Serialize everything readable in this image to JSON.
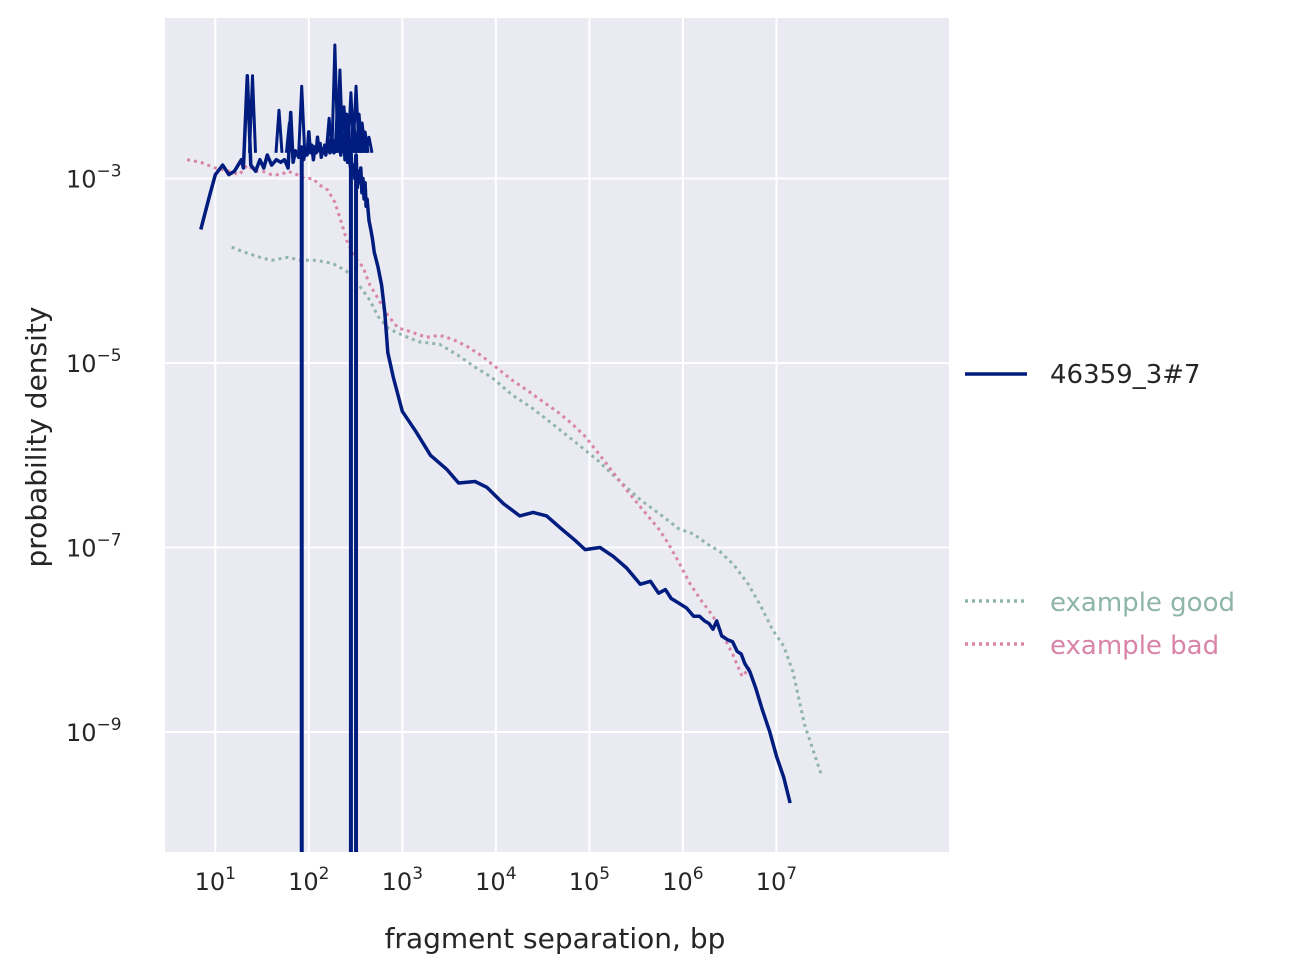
{
  "chart_data": {
    "type": "line",
    "xlabel": "fragment separation, bp",
    "ylabel": "probability density",
    "x_scale": "log",
    "y_scale": "log",
    "xlim": [
      2.9,
      700000000
    ],
    "ylim": [
      5e-11,
      0.055
    ],
    "grid": true,
    "x_ticks": [
      {
        "value": 10,
        "base": "10",
        "exp": "1"
      },
      {
        "value": 100,
        "base": "10",
        "exp": "2"
      },
      {
        "value": 1000,
        "base": "10",
        "exp": "3"
      },
      {
        "value": 10000,
        "base": "10",
        "exp": "4"
      },
      {
        "value": 100000,
        "base": "10",
        "exp": "5"
      },
      {
        "value": 1000000,
        "base": "10",
        "exp": "6"
      },
      {
        "value": 10000000,
        "base": "10",
        "exp": "7"
      }
    ],
    "y_ticks": [
      {
        "value": 0.001,
        "base": "10",
        "exp": "−3"
      },
      {
        "value": 1e-05,
        "base": "10",
        "exp": "−5"
      },
      {
        "value": 1e-07,
        "base": "10",
        "exp": "−7"
      },
      {
        "value": 1e-09,
        "base": "10",
        "exp": "−9"
      }
    ],
    "legend": {
      "placement": "outside-right",
      "groups": [
        {
          "entries": [
            {
              "label": "46359_3#7",
              "color": "#001c7f",
              "style": "solid"
            }
          ]
        },
        {
          "entries": [
            {
              "label": "example good",
              "color": "#8fb5aa",
              "style": "dotted"
            },
            {
              "label": "example bad",
              "color": "#d885a8",
              "style": "dotted"
            }
          ]
        }
      ]
    },
    "series": [
      {
        "name": "46359_3#7",
        "color": "#001c7f",
        "style": "solid",
        "points": [
          [
            7,
            0.00028
          ],
          [
            8.5,
            0.0006
          ],
          [
            10,
            0.0011
          ],
          [
            12,
            0.0014
          ],
          [
            14,
            0.0011
          ],
          [
            16,
            0.0012
          ],
          [
            19,
            0.0016
          ],
          [
            20,
            0.0013
          ],
          [
            22,
            0.013
          ],
          [
            24,
            0.0014
          ],
          [
            27,
            0.0012
          ],
          [
            30,
            0.0016
          ],
          [
            33,
            0.0013
          ],
          [
            36,
            0.0018
          ],
          [
            40,
            0.0014
          ],
          [
            45,
            0.0016
          ],
          [
            50,
            0.0015
          ],
          [
            55,
            0.0016
          ],
          [
            60,
            0.0013
          ],
          [
            64,
            0.0052
          ],
          [
            68,
            0.0015
          ],
          [
            72,
            0.002
          ],
          [
            78,
            0.0017
          ],
          [
            84,
            0.0022
          ],
          [
            88,
            0.0016
          ],
          [
            92,
            0.002
          ],
          [
            96,
            0.0018
          ],
          [
            100,
            0.0032
          ],
          [
            104,
            0.0019
          ],
          [
            108,
            0.0023
          ],
          [
            112,
            0.0016
          ],
          [
            116,
            0.0022
          ],
          [
            120,
            0.0019
          ],
          [
            124,
            0.0028
          ],
          [
            128,
            0.002
          ],
          [
            132,
            0.0024
          ],
          [
            136,
            0.0017
          ],
          [
            140,
            0.0021
          ],
          [
            144,
            0.0019
          ],
          [
            148,
            0.0023
          ],
          [
            152,
            0.0018
          ],
          [
            156,
            0.0022
          ],
          [
            160,
            0.002
          ],
          [
            164,
            0.0026
          ],
          [
            168,
            0.0019
          ],
          [
            172,
            0.0023
          ],
          [
            176,
            0.0021
          ],
          [
            180,
            0.0026
          ],
          [
            186,
            0.0019
          ],
          [
            192,
            0.0023
          ],
          [
            196,
            0.0021
          ],
          [
            200,
            0.0021
          ],
          [
            204,
            0.0024
          ],
          [
            208,
            0.002
          ],
          [
            212,
            0.0023
          ],
          [
            216,
            0.0021
          ],
          [
            220,
            0.0018
          ],
          [
            224,
            0.003
          ],
          [
            228,
            0.0026
          ],
          [
            232,
            0.003
          ],
          [
            236,
            0.0024
          ],
          [
            240,
            0.0022
          ],
          [
            244,
            0.0016
          ],
          [
            248,
            0.0021
          ],
          [
            252,
            0.0019
          ],
          [
            256,
            0.0018
          ],
          [
            260,
            0.0015
          ],
          [
            265,
            0.0019
          ],
          [
            270,
            0.0016
          ],
          [
            275,
            0.0015
          ],
          [
            280,
            0.0013
          ],
          [
            285,
            0.0017
          ],
          [
            290,
            0.0011
          ],
          [
            300,
            0.0014
          ],
          [
            310,
            0.001
          ],
          [
            320,
            0.0018
          ],
          [
            330,
            0.0008
          ],
          [
            340,
            0.0012
          ],
          [
            350,
            0.0009
          ],
          [
            360,
            0.0013
          ],
          [
            370,
            0.0007
          ],
          [
            380,
            0.001
          ],
          [
            390,
            0.0006
          ],
          [
            400,
            0.0009
          ],
          [
            410,
            0.0005
          ],
          [
            420,
            0.0006
          ],
          [
            440,
            0.00035
          ],
          [
            460,
            0.00028
          ],
          [
            480,
            0.00022
          ],
          [
            500,
            0.00016
          ],
          [
            550,
            0.00011
          ],
          [
            600,
            7e-05
          ],
          [
            650,
            3.5e-05
          ],
          [
            700,
            1.3e-05
          ],
          [
            800,
            7e-06
          ],
          [
            1000,
            3e-06
          ],
          [
            1400,
            1.8e-06
          ],
          [
            2000,
            1e-06
          ],
          [
            3000,
            7e-07
          ],
          [
            4000,
            5e-07
          ],
          [
            6000,
            5.2e-07
          ],
          [
            8000,
            4.5e-07
          ],
          [
            12000,
            3e-07
          ],
          [
            18000,
            2.2e-07
          ],
          [
            25000,
            2.4e-07
          ],
          [
            35000,
            2.2e-07
          ],
          [
            50000,
            1.6e-07
          ],
          [
            70000,
            1.2e-07
          ],
          [
            90000,
            9.5e-08
          ],
          [
            130000,
            1e-07
          ],
          [
            180000,
            8e-08
          ],
          [
            250000,
            6e-08
          ],
          [
            350000,
            4e-08
          ],
          [
            450000,
            4.3e-08
          ],
          [
            550000,
            3.2e-08
          ],
          [
            650000,
            3.5e-08
          ],
          [
            750000,
            2.8e-08
          ],
          [
            900000,
            2.5e-08
          ],
          [
            1100000,
            2.2e-08
          ],
          [
            1300000,
            1.8e-08
          ],
          [
            1500000,
            1.8e-08
          ],
          [
            1700000,
            1.6e-08
          ],
          [
            1900000,
            1.5e-08
          ],
          [
            2100000,
            1.3e-08
          ],
          [
            2300000,
            1.6e-08
          ],
          [
            2600000,
            1.1e-08
          ],
          [
            3000000,
            1e-08
          ],
          [
            3400000,
            9.5e-09
          ],
          [
            3800000,
            7.5e-09
          ],
          [
            4200000,
            7e-09
          ],
          [
            4600000,
            5.5e-09
          ],
          [
            5200000,
            4.5e-09
          ],
          [
            6000000,
            3e-09
          ],
          [
            7000000,
            1.8e-09
          ],
          [
            8500000,
            1e-09
          ],
          [
            10000000,
            5.5e-10
          ],
          [
            12000000,
            3.2e-10
          ],
          [
            14000000,
            1.7e-10
          ]
        ],
        "spikes": [
          {
            "x": 25,
            "y": 0.013
          },
          {
            "x": 48,
            "y": 0.0055
          },
          {
            "x": 62,
            "y": 0.004
          },
          {
            "x": 84,
            "y": 0.01
          },
          {
            "x": 165,
            "y": 0.0045
          },
          {
            "x": 190,
            "y": 0.028
          },
          {
            "x": 205,
            "y": 0.008
          },
          {
            "x": 215,
            "y": 0.015
          },
          {
            "x": 238,
            "y": 0.006
          },
          {
            "x": 255,
            "y": 0.005
          },
          {
            "x": 282,
            "y": 0.0085
          },
          {
            "x": 300,
            "y": 0.0045
          },
          {
            "x": 320,
            "y": 0.01
          },
          {
            "x": 345,
            "y": 0.005
          },
          {
            "x": 372,
            "y": 0.004
          },
          {
            "x": 400,
            "y": 0.0032
          },
          {
            "x": 440,
            "y": 0.0028
          }
        ],
        "drops": [
          {
            "x": 84,
            "from": 0.002,
            "to": 5e-11
          },
          {
            "x": 282,
            "from": 0.0019,
            "to": 5e-11
          },
          {
            "x": 320,
            "from": 0.0018,
            "to": 5e-11
          }
        ]
      },
      {
        "name": "example good",
        "color": "#8fb5aa",
        "style": "dotted",
        "points": [
          [
            15,
            0.00018
          ],
          [
            20,
            0.00016
          ],
          [
            30,
            0.00014
          ],
          [
            40,
            0.00013
          ],
          [
            60,
            0.00014
          ],
          [
            80,
            0.00013
          ],
          [
            120,
            0.00013
          ],
          [
            180,
            0.00012
          ],
          [
            250,
            0.0001
          ],
          [
            350,
            6.8e-05
          ],
          [
            450,
            4.8e-05
          ],
          [
            550,
            3.2e-05
          ],
          [
            700,
            2.4e-05
          ],
          [
            900,
            2.1e-05
          ],
          [
            1500,
            1.7e-05
          ],
          [
            2500,
            1.6e-05
          ],
          [
            4000,
            1.2e-05
          ],
          [
            6000,
            9e-06
          ],
          [
            9000,
            7e-06
          ],
          [
            15000,
            4.5e-06
          ],
          [
            25000,
            3.2e-06
          ],
          [
            40000,
            2.2e-06
          ],
          [
            70000,
            1.4e-06
          ],
          [
            120000,
            9e-07
          ],
          [
            200000,
            5.5e-07
          ],
          [
            350000,
            3.3e-07
          ],
          [
            600000,
            2.2e-07
          ],
          [
            900000,
            1.6e-07
          ],
          [
            1300000,
            1.4e-07
          ],
          [
            1800000,
            1.1e-07
          ],
          [
            2500000,
            9e-08
          ],
          [
            3500000,
            6.5e-08
          ],
          [
            5000000,
            4e-08
          ],
          [
            7000000,
            2.2e-08
          ],
          [
            9000000,
            1.3e-08
          ],
          [
            12000000,
            8.5e-09
          ],
          [
            15000000,
            4.5e-09
          ],
          [
            20000000,
            1.2e-09
          ],
          [
            30000000,
            3.5e-10
          ]
        ]
      },
      {
        "name": "example bad",
        "color": "#d885a8",
        "style": "dotted",
        "points": [
          [
            5,
            0.0016
          ],
          [
            7,
            0.0015
          ],
          [
            10,
            0.0013
          ],
          [
            14,
            0.0012
          ],
          [
            18,
            0.0011
          ],
          [
            22,
            0.0014
          ],
          [
            27,
            0.0012
          ],
          [
            32,
            0.0012
          ],
          [
            40,
            0.0011
          ],
          [
            50,
            0.0011
          ],
          [
            60,
            0.0012
          ],
          [
            75,
            0.0011
          ],
          [
            90,
            0.001
          ],
          [
            110,
            0.001
          ],
          [
            130,
            0.00085
          ],
          [
            160,
            0.00075
          ],
          [
            190,
            0.00055
          ],
          [
            220,
            0.00035
          ],
          [
            260,
            0.0002
          ],
          [
            310,
            0.00014
          ],
          [
            380,
            0.00011
          ],
          [
            450,
            7e-05
          ],
          [
            550,
            5e-05
          ],
          [
            700,
            3.3e-05
          ],
          [
            900,
            2.4e-05
          ],
          [
            1200,
            2.2e-05
          ],
          [
            1800,
            1.9e-05
          ],
          [
            2500,
            2e-05
          ],
          [
            3500,
            1.8e-05
          ],
          [
            5000,
            1.5e-05
          ],
          [
            7000,
            1.2e-05
          ],
          [
            10000,
            9e-06
          ],
          [
            15000,
            6.5e-06
          ],
          [
            22000,
            5e-06
          ],
          [
            32000,
            3.8e-06
          ],
          [
            45000,
            3e-06
          ],
          [
            65000,
            2.2e-06
          ],
          [
            90000,
            1.6e-06
          ],
          [
            130000,
            1e-06
          ],
          [
            180000,
            6.5e-07
          ],
          [
            260000,
            4e-07
          ],
          [
            380000,
            2.5e-07
          ],
          [
            550000,
            1.6e-07
          ],
          [
            700000,
            1.1e-07
          ],
          [
            900000,
            7e-08
          ],
          [
            1200000,
            4e-08
          ],
          [
            1600000,
            2.6e-08
          ],
          [
            2100000,
            1.8e-08
          ],
          [
            2700000,
            1.1e-08
          ],
          [
            3400000,
            7e-09
          ],
          [
            4300000,
            4e-09
          ],
          [
            5200000,
            5e-09
          ]
        ]
      }
    ]
  }
}
